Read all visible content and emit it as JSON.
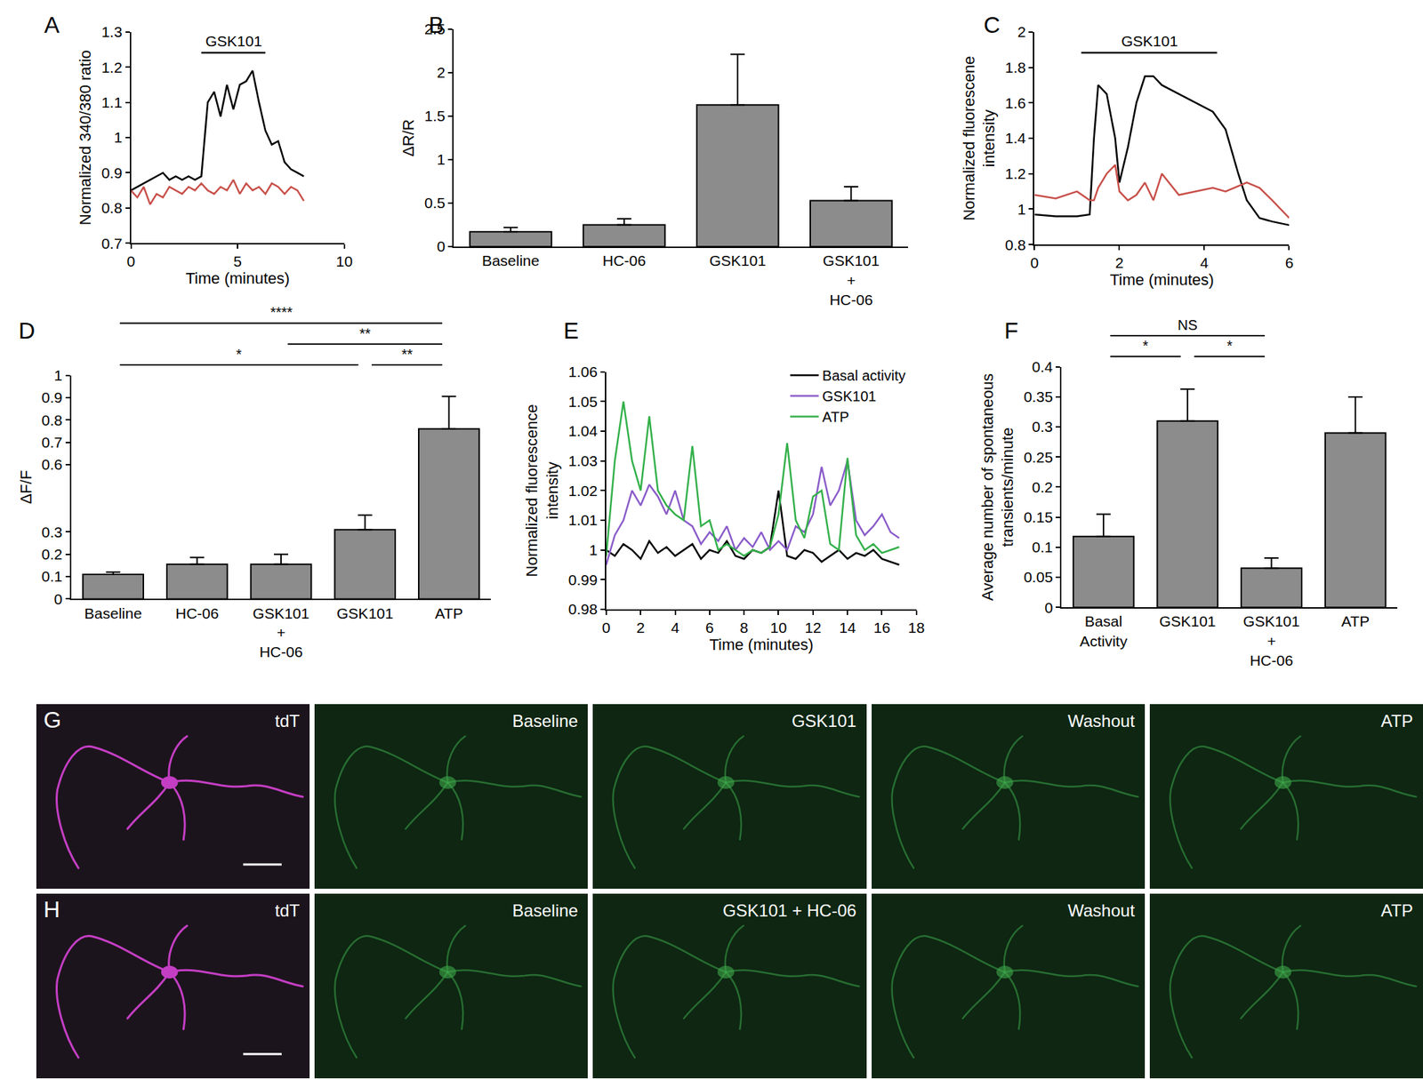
{
  "chart_data": [
    {
      "panel": "A",
      "type": "line",
      "x": [
        0,
        0.3,
        0.6,
        0.9,
        1.2,
        1.5,
        1.8,
        2.1,
        2.4,
        2.7,
        3,
        3.3,
        3.6,
        3.9,
        4.2,
        4.5,
        4.8,
        5.1,
        5.4,
        5.7,
        6,
        6.3,
        6.6,
        6.9,
        7.2,
        7.5,
        7.8,
        8.1
      ],
      "series": [
        {
          "color": "#000000",
          "values": [
            0.85,
            0.86,
            0.87,
            0.88,
            0.89,
            0.9,
            0.88,
            0.89,
            0.88,
            0.89,
            0.88,
            0.89,
            1.1,
            1.13,
            1.06,
            1.15,
            1.08,
            1.15,
            1.16,
            1.19,
            1.1,
            1.02,
            0.98,
            0.99,
            0.93,
            0.91,
            0.9,
            0.89
          ]
        },
        {
          "color": "#c8504a",
          "values": [
            0.85,
            0.83,
            0.86,
            0.81,
            0.84,
            0.83,
            0.86,
            0.85,
            0.84,
            0.86,
            0.85,
            0.87,
            0.85,
            0.84,
            0.86,
            0.85,
            0.88,
            0.84,
            0.87,
            0.85,
            0.86,
            0.84,
            0.87,
            0.86,
            0.84,
            0.86,
            0.85,
            0.82
          ]
        }
      ],
      "xlabel": "Time (minutes)",
      "ylabel": "Normalized 340/380 ratio",
      "xlim": [
        0,
        10
      ],
      "xticks": [
        0,
        5,
        10
      ],
      "ylim": [
        0.7,
        1.3
      ],
      "yticks": [
        0.7,
        0.8,
        0.9,
        1,
        1.1,
        1.2,
        1.3
      ],
      "annotations": [
        {
          "text": "GSK101",
          "x0": 3.3,
          "x1": 6.3
        }
      ]
    },
    {
      "panel": "B",
      "type": "bar",
      "categories": [
        "Baseline",
        "HC-06",
        "GSK101",
        "GSK101\n+\nHC-06"
      ],
      "values": [
        0.17,
        0.25,
        1.63,
        0.53
      ],
      "errors": [
        0.05,
        0.07,
        0.58,
        0.16
      ],
      "color": "#8c8c8c",
      "ylabel": "ΔR/R",
      "ylim": [
        0,
        2.5
      ],
      "yticks": [
        0,
        0.5,
        1,
        1.5,
        2,
        2.5
      ]
    },
    {
      "panel": "C",
      "type": "line",
      "x": [
        0,
        0.5,
        1,
        1.3,
        1.4,
        1.5,
        1.7,
        1.9,
        2,
        2.2,
        2.4,
        2.6,
        2.8,
        3,
        3.4,
        3.8,
        4.2,
        4.5,
        4.8,
        5,
        5.3,
        5.6,
        6
      ],
      "series": [
        {
          "color": "#000000",
          "values": [
            0.97,
            0.96,
            0.96,
            0.97,
            1.4,
            1.7,
            1.65,
            1.4,
            1.15,
            1.35,
            1.6,
            1.75,
            1.75,
            1.7,
            1.65,
            1.6,
            1.55,
            1.45,
            1.2,
            1.05,
            0.95,
            0.93,
            0.91
          ]
        },
        {
          "color": "#c8504a",
          "values": [
            1.08,
            1.06,
            1.1,
            1.05,
            1.05,
            1.12,
            1.2,
            1.25,
            1.1,
            1.05,
            1.08,
            1.15,
            1.05,
            1.2,
            1.08,
            1.1,
            1.12,
            1.1,
            1.13,
            1.15,
            1.12,
            1.05,
            0.95
          ]
        }
      ],
      "xlabel": "Time (minutes)",
      "ylabel": "Normalized fluorescene\nintensity",
      "xlim": [
        0,
        6
      ],
      "xticks": [
        0,
        2,
        4,
        6
      ],
      "ylim": [
        0.8,
        2
      ],
      "yticks": [
        0.8,
        1,
        1.2,
        1.4,
        1.6,
        1.8,
        2
      ],
      "annotations": [
        {
          "text": "GSK101",
          "x0": 1.1,
          "x1": 4.3
        }
      ]
    },
    {
      "panel": "D",
      "type": "bar",
      "categories": [
        "Baseline",
        "HC-06",
        "GSK101\n+\nHC-06",
        "GSK101",
        "ATP"
      ],
      "values": [
        0.11,
        0.155,
        0.155,
        0.31,
        0.76
      ],
      "errors": [
        0.01,
        0.03,
        0.045,
        0.065,
        0.145
      ],
      "color": "#8c8c8c",
      "ylabel": "ΔF/F",
      "ylim": [
        0,
        1
      ],
      "yticks": [
        0,
        0.1,
        0.2,
        0.3,
        0.6,
        0.7,
        0.8,
        0.9,
        1
      ],
      "significance": [
        {
          "text": "****",
          "from": "Baseline",
          "to": "ATP"
        },
        {
          "text": "**",
          "from": "GSK101\n+\nHC-06",
          "to": "ATP"
        },
        {
          "text": "*",
          "from": "Baseline",
          "to": "GSK101"
        },
        {
          "text": "**",
          "from": "GSK101",
          "to": "ATP"
        }
      ]
    },
    {
      "panel": "E",
      "type": "line",
      "x": [
        0,
        0.5,
        1,
        1.5,
        2,
        2.5,
        3,
        3.5,
        4,
        4.5,
        5,
        5.5,
        6,
        6.5,
        7,
        7.5,
        8,
        8.5,
        9,
        9.5,
        10,
        10.5,
        11,
        11.5,
        12,
        12.5,
        13,
        13.5,
        14,
        14.5,
        15,
        15.5,
        16,
        16.5,
        17
      ],
      "series": [
        {
          "name": "Basal activity",
          "color": "#000000",
          "values": [
            1.0,
            0.998,
            1.002,
            1.0,
            0.997,
            1.003,
            0.999,
            1.001,
            0.998,
            1.0,
            1.002,
            0.997,
            1.0,
            0.999,
            1.003,
            0.998,
            0.997,
            1.0,
            0.999,
            1.001,
            1.02,
            0.998,
            0.997,
            1.0,
            0.999,
            0.996,
            0.998,
            1.0,
            0.997,
            0.999,
            0.998,
            1.0,
            0.997,
            0.996,
            0.995
          ]
        },
        {
          "name": "GSK101",
          "color": "#8a5cc9",
          "values": [
            0.995,
            1.005,
            1.01,
            1.02,
            1.015,
            1.022,
            1.018,
            1.012,
            1.02,
            1.01,
            1.008,
            1.002,
            1.006,
            1.003,
            1.008,
            1.0,
            1.004,
            1.001,
            1.006,
            1.0,
            1.003,
            1.0,
            1.008,
            1.006,
            1.012,
            1.028,
            1.015,
            1.02,
            1.03,
            1.01,
            1.005,
            1.008,
            1.012,
            1.006,
            1.004
          ]
        },
        {
          "name": "ATP",
          "color": "#33b04a",
          "values": [
            0.998,
            1.03,
            1.05,
            1.03,
            1.02,
            1.045,
            1.02,
            1.015,
            1.012,
            1.01,
            1.035,
            1.008,
            1.01,
            1.0,
            1.002,
            1.0,
            0.998,
            1.0,
            0.999,
            1.001,
            1.012,
            1.036,
            1.01,
            1.004,
            1.018,
            1.02,
            1.002,
            1.0,
            1.031,
            1.005,
            1.0,
            1.002,
            0.999,
            1.0,
            1.001
          ]
        }
      ],
      "xlabel": "Time (minutes)",
      "ylabel": "Normalized fluorescence\nintensity",
      "xlim": [
        0,
        18
      ],
      "xticks": [
        0,
        2,
        4,
        6,
        8,
        10,
        12,
        14,
        16,
        18
      ],
      "ylim": [
        0.98,
        1.06
      ],
      "yticks": [
        0.98,
        0.99,
        1,
        1.01,
        1.02,
        1.03,
        1.04,
        1.05,
        1.06
      ],
      "legend": "upper right"
    },
    {
      "panel": "F",
      "type": "bar",
      "categories": [
        "Basal\nActivity",
        "GSK101",
        "GSK101\n+\nHC-06",
        "ATP"
      ],
      "values": [
        0.118,
        0.31,
        0.065,
        0.29
      ],
      "errors": [
        0.037,
        0.053,
        0.017,
        0.06
      ],
      "color": "#8c8c8c",
      "ylabel": "Average number of spontaneous\ntransients/minute",
      "ylim": [
        0,
        0.4
      ],
      "yticks": [
        0,
        0.05,
        0.1,
        0.15,
        0.2,
        0.25,
        0.3,
        0.35,
        0.4
      ],
      "significance": [
        {
          "text": "NS",
          "from": "Basal\nActivity",
          "to": "GSK101\n+\nHC-06"
        },
        {
          "text": "*",
          "from": "Basal\nActivity",
          "to": "GSK101"
        },
        {
          "text": "*",
          "from": "GSK101",
          "to": "GSK101\n+\nHC-06"
        }
      ]
    }
  ],
  "images": {
    "rows": [
      {
        "panel": "G",
        "frames": [
          "tdT",
          "Baseline",
          "GSK101",
          "Washout",
          "ATP"
        ]
      },
      {
        "panel": "H",
        "frames": [
          "tdT",
          "Baseline",
          "GSK101 + HC-06",
          "Washout",
          "ATP"
        ]
      }
    ]
  }
}
